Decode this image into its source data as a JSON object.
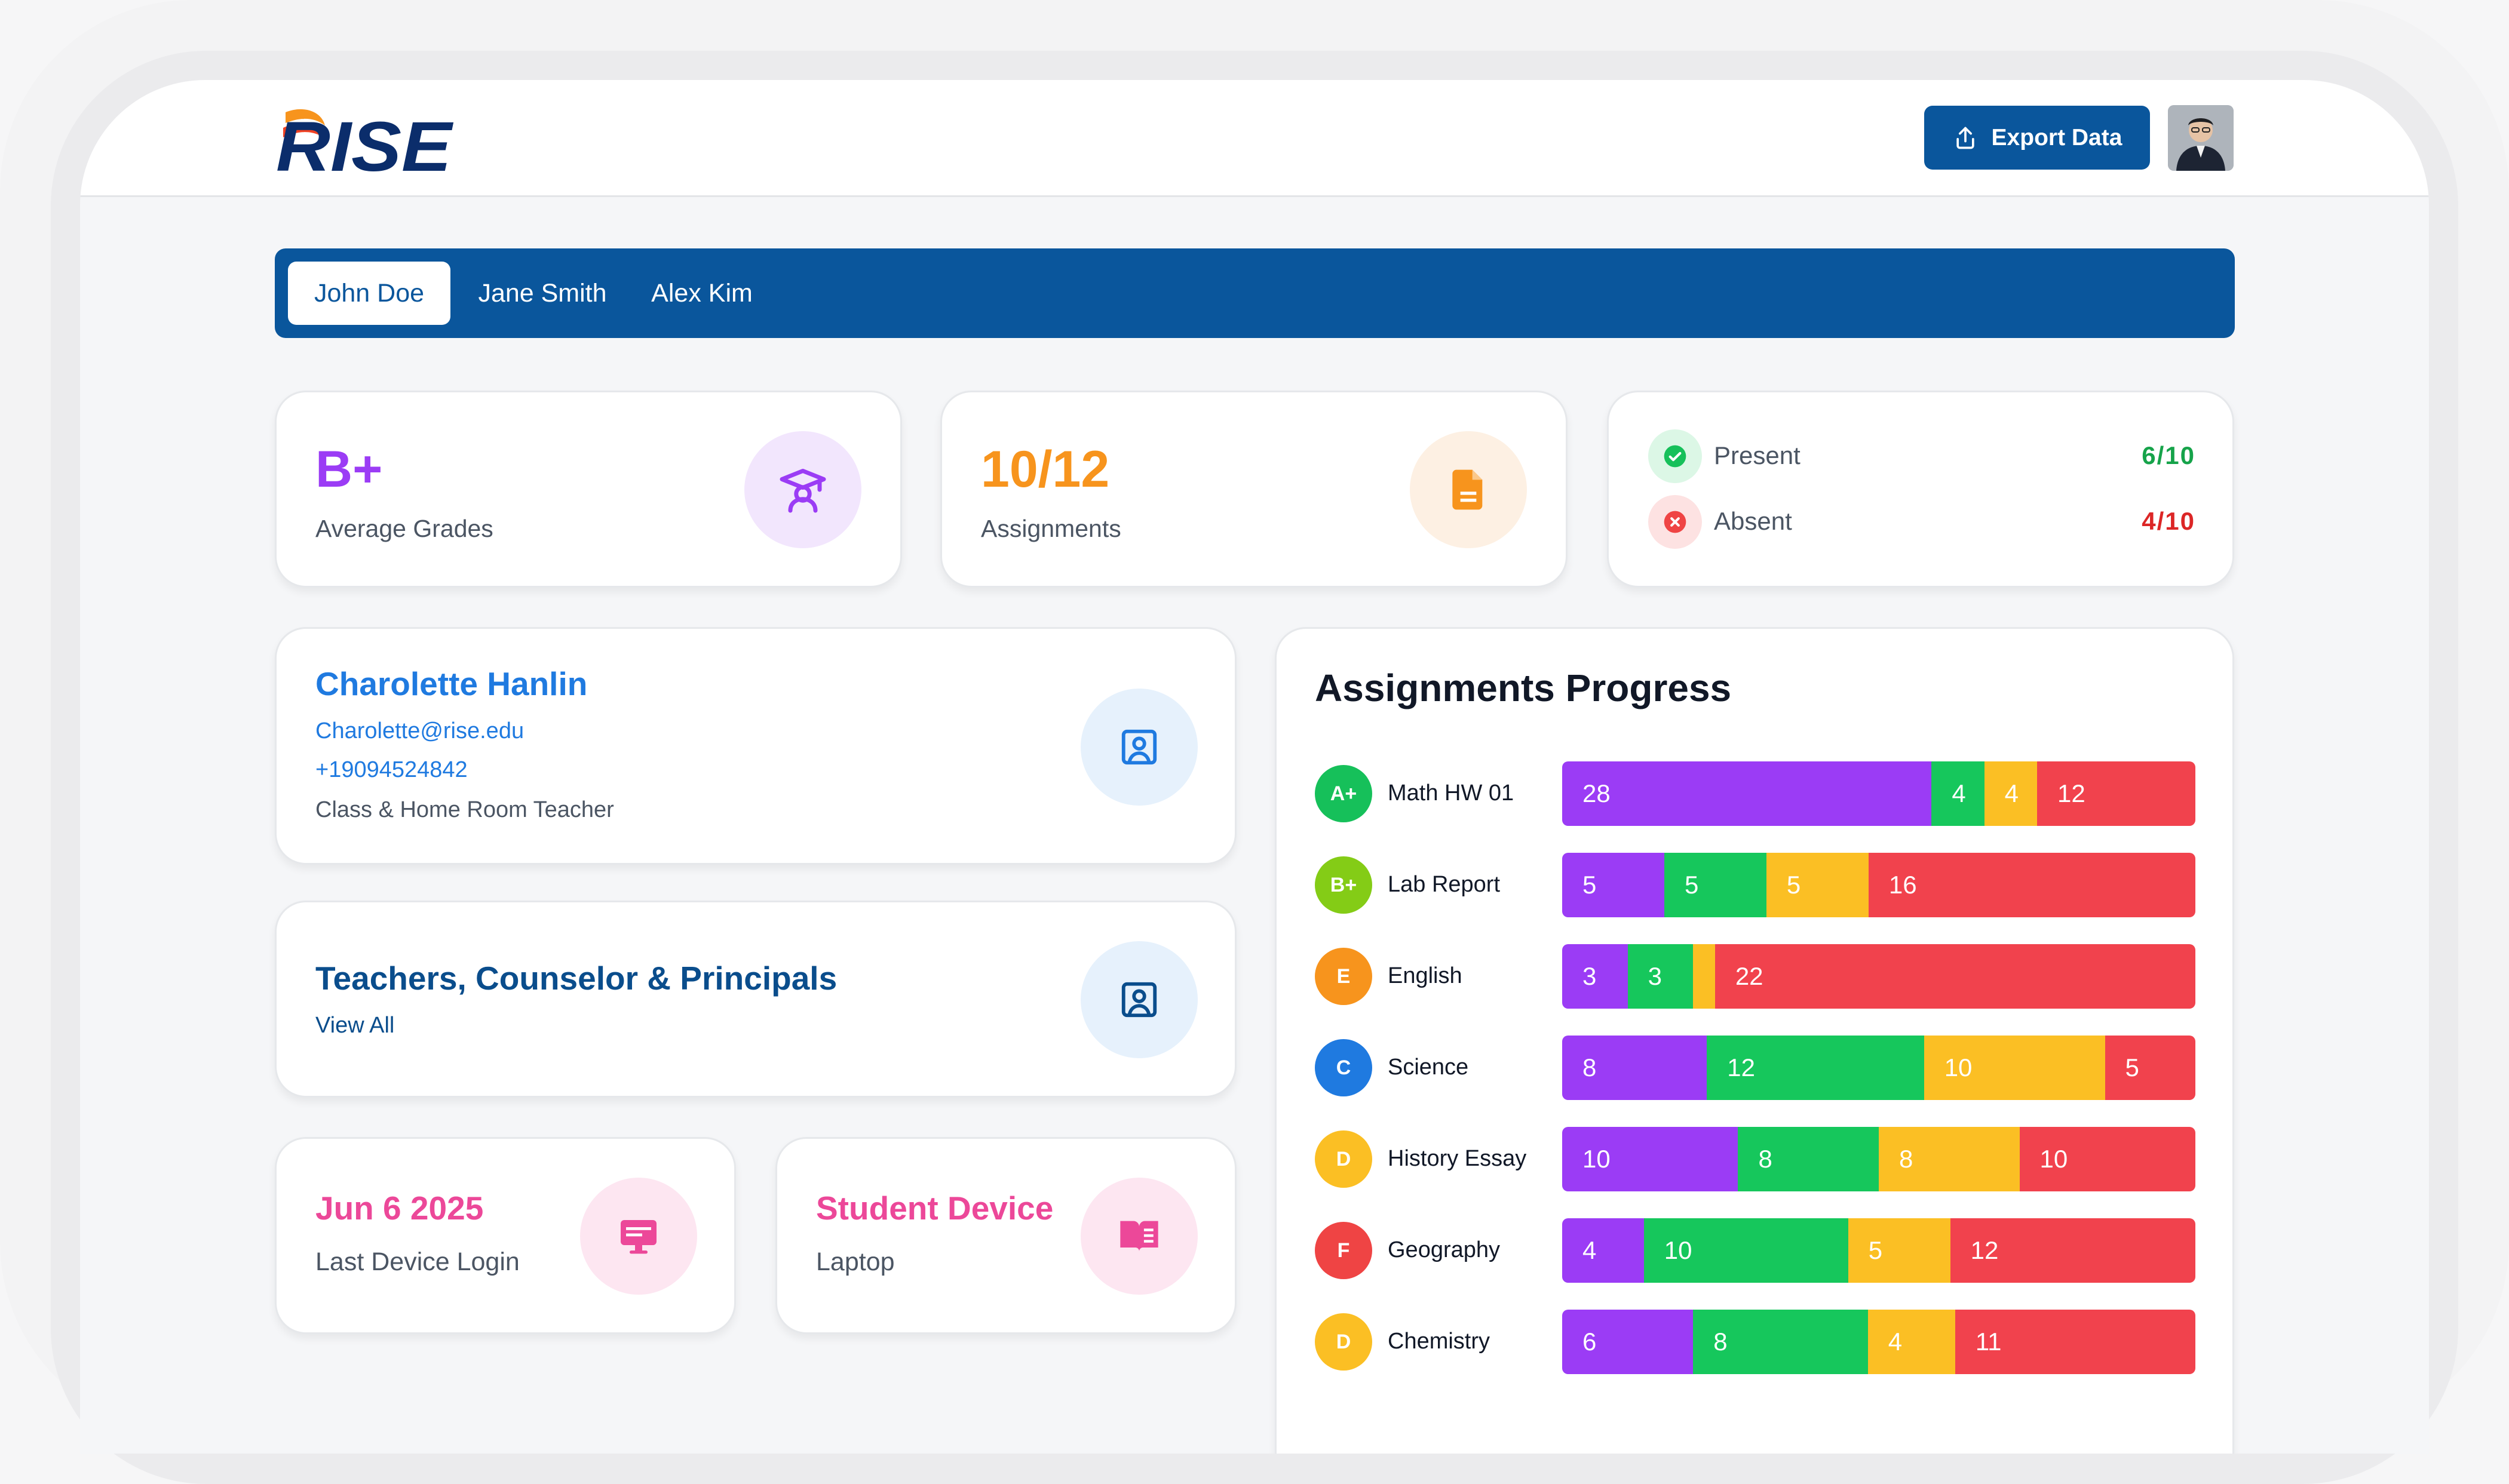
{
  "brand": {
    "logo_text": "RISE"
  },
  "header": {
    "export_label": "Export Data"
  },
  "tabs": [
    {
      "label": "John Doe",
      "active": true
    },
    {
      "label": "Jane Smith",
      "active": false
    },
    {
      "label": "Alex Kim",
      "active": false
    }
  ],
  "stats": {
    "grades": {
      "value": "B+",
      "label": "Average Grades"
    },
    "assignments": {
      "value": "10/12",
      "label": "Assignments"
    },
    "attendance": {
      "present_label": "Present",
      "present_value": "6/10",
      "absent_label": "Absent",
      "absent_value": "4/10"
    }
  },
  "teacher": {
    "name": "Charolette Hanlin",
    "email": "Charolette@rise.edu",
    "phone": "+19094524842",
    "role": "Class & Home Room Teacher"
  },
  "staff": {
    "title": "Teachers, Counselor & Principals",
    "link": "View All"
  },
  "device_login": {
    "value": "Jun 6 2025",
    "label": "Last Device Login"
  },
  "student_device": {
    "value": "Student Device",
    "label": "Laptop"
  },
  "progress": {
    "title": "Assignments Progress",
    "rows": [
      {
        "grade": "A+",
        "grade_color": "#16c05a",
        "name": "Math HW 01",
        "segments": [
          28,
          4,
          4,
          12
        ]
      },
      {
        "grade": "B+",
        "grade_color": "#84cc16",
        "name": "Lab Report",
        "segments": [
          5,
          5,
          5,
          16
        ]
      },
      {
        "grade": "E",
        "grade_color": "#f7941d",
        "name": "English",
        "segments": [
          3,
          3,
          1,
          22
        ]
      },
      {
        "grade": "C",
        "grade_color": "#1f7ae0",
        "name": "Science",
        "segments": [
          8,
          12,
          10,
          5
        ]
      },
      {
        "grade": "D",
        "grade_color": "#fbbf24",
        "name": "History Essay",
        "segments": [
          10,
          8,
          8,
          10
        ]
      },
      {
        "grade": "F",
        "grade_color": "#ef4444",
        "name": "Geography",
        "segments": [
          4,
          10,
          5,
          12
        ]
      },
      {
        "grade": "D",
        "grade_color": "#fbbf24",
        "name": "Chemistry",
        "segments": [
          6,
          8,
          4,
          11
        ]
      }
    ],
    "segment_colors": [
      "#9b3cf5",
      "#16c75c",
      "#fbbf24",
      "#f1424d"
    ]
  },
  "colors": {
    "primary": "#0a569c",
    "grade_purple": "#9b3cf5",
    "assignments_orange": "#f7941d",
    "present_green": "#16a34a",
    "absent_red": "#dc2626",
    "pink": "#ec4899"
  }
}
